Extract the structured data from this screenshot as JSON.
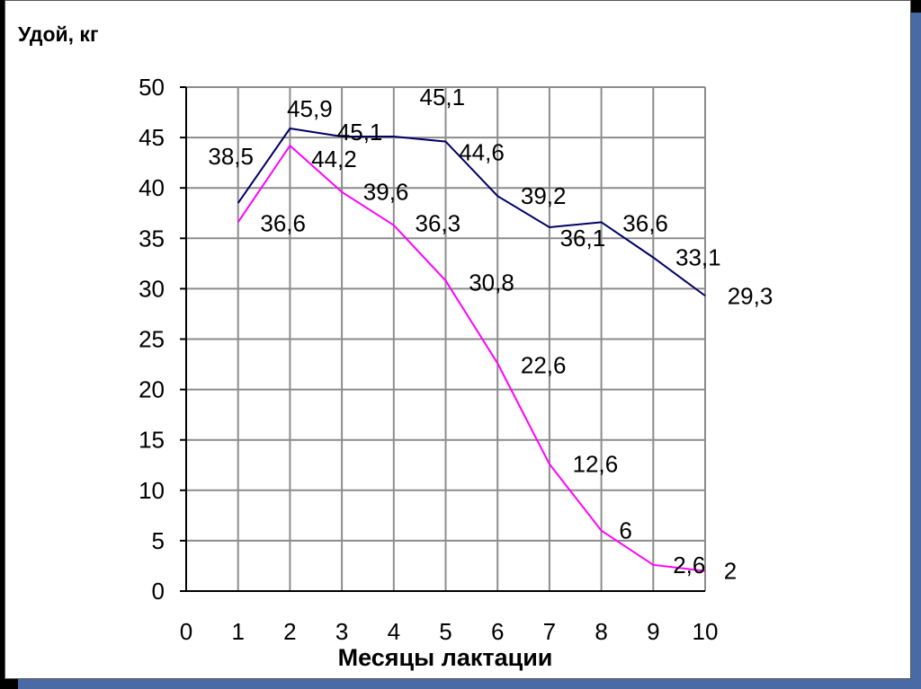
{
  "chart_data": {
    "type": "line",
    "ylabel": "Удой, кг",
    "xlabel": "Месяцы лактации",
    "xlim": [
      0,
      10
    ],
    "ylim": [
      0,
      50
    ],
    "x_ticks": [
      0,
      1,
      2,
      3,
      4,
      5,
      6,
      7,
      8,
      9,
      10
    ],
    "y_ticks": [
      0,
      5,
      10,
      15,
      20,
      25,
      30,
      35,
      40,
      45,
      50
    ],
    "grid": true,
    "x": [
      1,
      2,
      3,
      4,
      5,
      6,
      7,
      8,
      9,
      10
    ],
    "series": [
      {
        "color": "#000066",
        "values": [
          38.5,
          45.9,
          45.1,
          45.1,
          44.6,
          39.2,
          36.1,
          36.6,
          33.1,
          29.3
        ],
        "labels": [
          "38,5",
          "45,9",
          "45,1",
          "45,1",
          "44,6",
          "39,2",
          "36,1",
          "36,6",
          "33,1",
          "29,3"
        ]
      },
      {
        "color": "#ff00ff",
        "values": [
          36.6,
          44.2,
          39.6,
          36.3,
          30.8,
          22.6,
          12.6,
          6,
          2.6,
          2
        ],
        "labels": [
          "36,6",
          "44,2",
          "39,6",
          "36,3",
          "30,8",
          "22,6",
          "12,6",
          "6",
          "2,6",
          "2"
        ]
      }
    ]
  }
}
